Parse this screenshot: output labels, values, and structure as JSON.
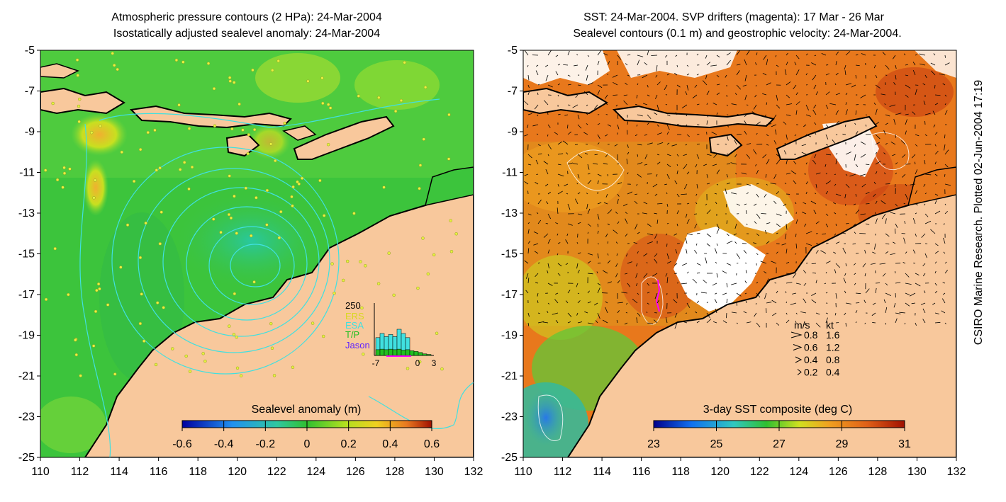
{
  "left_panel": {
    "title_line1": "Atmospheric pressure contours (2 HPa): 24-Mar-2004",
    "title_line2": "Isostatically adjusted sealevel anomaly: 24-Mar-2004",
    "colorbar": {
      "label": "Sealevel anomaly (m)",
      "ticks": [
        "-0.6",
        "-0.4",
        "-0.2",
        "0",
        "0.2",
        "0.4",
        "0.6"
      ]
    },
    "histogram": {
      "ymax_label": "250",
      "legend": [
        "ERS",
        "ESA",
        "T/P",
        "Jason"
      ],
      "xticks": [
        "-7",
        "0",
        "3"
      ],
      "bars_total": [
        85,
        105,
        90,
        100,
        90,
        125,
        105,
        85
      ],
      "bars_lower": [
        55,
        60,
        55,
        60,
        55,
        60,
        50,
        55,
        45,
        38,
        28,
        15,
        10
      ]
    }
  },
  "right_panel": {
    "title_line1": "SST: 24-Mar-2004. SVP drifters (magenta): 17 Mar - 26 Mar",
    "title_line2": "Sealevel contours (0.1 m) and geostrophic velocity: 24-Mar-2004.",
    "colorbar": {
      "label": "3-day SST composite (deg C)",
      "ticks": [
        "23",
        "25",
        "27",
        "29",
        "31"
      ]
    },
    "velocity_legend": {
      "header_ms": "m/s",
      "header_kt": "kt",
      "rows": [
        {
          "ms": "0.8",
          "kt": "1.6"
        },
        {
          "ms": "0.6",
          "kt": "1.2"
        },
        {
          "ms": "0.4",
          "kt": "0.8"
        },
        {
          "ms": "0.2",
          "kt": "0.4"
        }
      ]
    }
  },
  "axes": {
    "lat_ticks": [
      "-5",
      "-7",
      "-9",
      "-11",
      "-13",
      "-15",
      "-17",
      "-19",
      "-21",
      "-23",
      "-25"
    ],
    "lon_ticks": [
      "110",
      "112",
      "114",
      "116",
      "118",
      "120",
      "122",
      "124",
      "126",
      "128",
      "130",
      "132"
    ]
  },
  "side_credit": "CSIRO Marine Research. Plotted 02-Jun-2004 17:19",
  "colors": {
    "land": "#f8c89c",
    "sea_green": "#3cc43c",
    "sst_orange": "#e8781c",
    "contour": "#40e0e0",
    "magenta": "#ff00ff"
  }
}
